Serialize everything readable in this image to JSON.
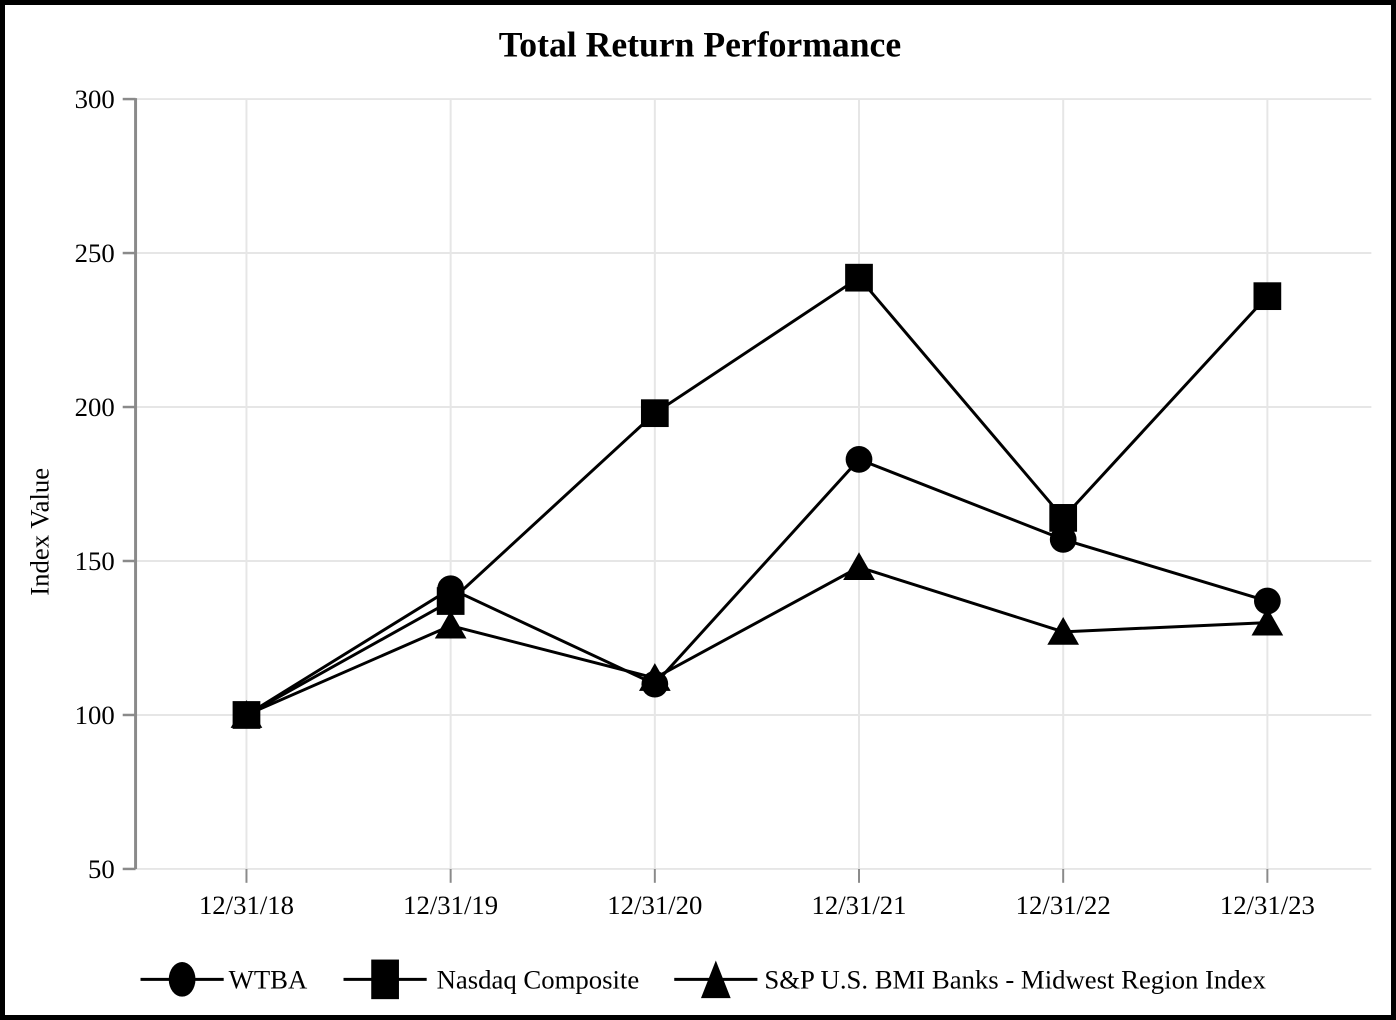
{
  "chart_data": {
    "type": "line",
    "title": "Total Return Performance",
    "ylabel": "Index Value",
    "xlabel": "",
    "categories": [
      "12/31/18",
      "12/31/19",
      "12/31/20",
      "12/31/21",
      "12/31/22",
      "12/31/23"
    ],
    "series": [
      {
        "name": "WTBA",
        "marker": "circle",
        "slug": "wtba",
        "values": [
          100,
          141,
          110,
          183,
          157,
          137
        ]
      },
      {
        "name": "Nasdaq Composite",
        "marker": "square",
        "slug": "nasdaq-composite",
        "values": [
          100,
          137,
          198,
          242,
          164,
          236
        ]
      },
      {
        "name": "S&P U.S. BMI Banks - Midwest Region Index",
        "marker": "triangle",
        "slug": "sp-bmi-banks-midwest",
        "values": [
          100,
          129,
          112,
          148,
          127,
          130
        ]
      }
    ],
    "yticks": [
      50,
      100,
      150,
      200,
      250,
      300
    ],
    "ylim": [
      50,
      300
    ],
    "grid": "on",
    "legend_position": "bottom",
    "colors": {
      "series_line": "#000000",
      "marker_fill": "#000000",
      "gridline": "#e6e6e6",
      "axis_line": "#8a8a8a",
      "text": "#000000",
      "frame_border": "#000000",
      "background": "#ffffff"
    }
  }
}
